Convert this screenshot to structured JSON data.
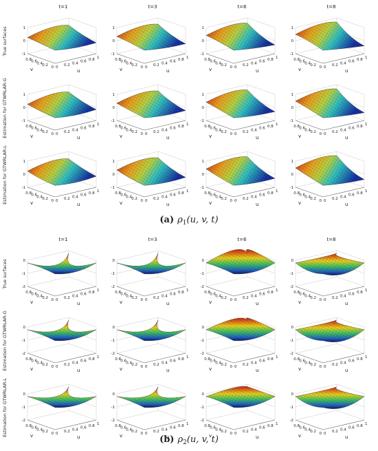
{
  "figure_a": {
    "columns": [
      "t=1",
      "t=3",
      "t=6",
      "t=8"
    ],
    "rows": [
      "True surfaces",
      "Estimation for GTWRLAR-G",
      "Estimation for GTWRLAR-L"
    ],
    "zticks": [
      "1",
      "0",
      "-1"
    ],
    "vticks": [
      "0.8",
      "0.6",
      "0.4",
      "0.2",
      "0"
    ],
    "uticks": [
      "0",
      "0.2",
      "0.4",
      "0.6",
      "0.8",
      "1"
    ],
    "v_label": "v",
    "u_label": "u",
    "caption_label": "(a)",
    "caption_symbol": "ρ",
    "caption_subscript": "1",
    "caption_args": "(u, v, t)"
  },
  "figure_b": {
    "columns": [
      "t=1",
      "t=3",
      "t=6",
      "t=8"
    ],
    "rows": [
      "True surfaces",
      "Estimation for GTWRLAR-G",
      "Estimation for GTWRLAR-L"
    ],
    "zticks": [
      "0",
      "-1",
      "-2"
    ],
    "vticks": [
      "0.8",
      "0.6",
      "0.4",
      "0.2",
      "0"
    ],
    "uticks": [
      "0",
      "0.2",
      "0.4",
      "0.6",
      "0.8",
      "1"
    ],
    "v_label": "v",
    "u_label": "u",
    "caption_label": "(b)",
    "caption_symbol": "ρ",
    "caption_subscript": "2",
    "caption_args": "(u, v, t)"
  }
}
